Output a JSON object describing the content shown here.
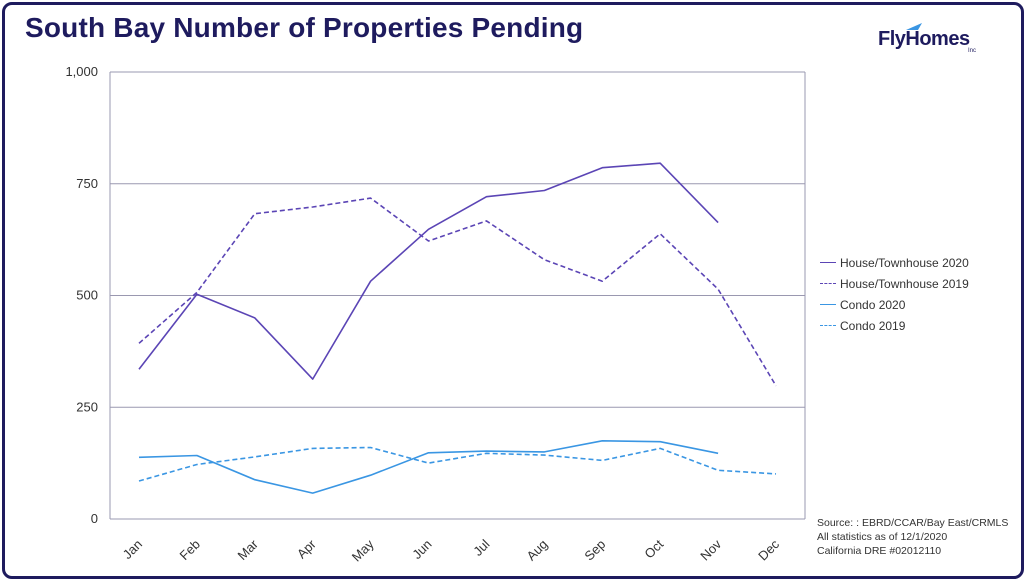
{
  "header": {
    "title": "South Bay Number of Properties Pending",
    "logo_text": "FlyHomes",
    "logo_sub": "Inc"
  },
  "colors": {
    "house": "#5b45b5",
    "condo": "#3a96e3",
    "grid": "#9a98b0",
    "frame": "#1e1b5e"
  },
  "source_lines": [
    "Source: : EBRD/CCAR/Bay East/CRMLS",
    "All statistics as of 12/1/2020",
    "California DRE #02012110"
  ],
  "chart_data": {
    "type": "line",
    "title": "South Bay Number of Properties Pending",
    "categories": [
      "Jan",
      "Feb",
      "Mar",
      "Apr",
      "May",
      "Jun",
      "Jul",
      "Aug",
      "Sep",
      "Oct",
      "Nov",
      "Dec"
    ],
    "ylim": [
      0,
      1000
    ],
    "yticks": [
      0,
      250,
      500,
      750,
      1000
    ],
    "ytick_labels": [
      "0",
      "250",
      "500",
      "750",
      "1,000"
    ],
    "grid": true,
    "legend_position": "right",
    "series": [
      {
        "name": "House/Townhouse 2020",
        "style": "solid",
        "color_key": "house",
        "values": [
          335,
          503,
          450,
          313,
          532,
          648,
          721,
          735,
          786,
          796,
          663,
          null
        ]
      },
      {
        "name": "House/Townhouse 2019",
        "style": "dashed",
        "color_key": "house",
        "values": [
          393,
          507,
          683,
          698,
          718,
          622,
          667,
          580,
          532,
          638,
          514,
          298
        ]
      },
      {
        "name": "Condo 2020",
        "style": "solid",
        "color_key": "condo",
        "values": [
          138,
          142,
          88,
          58,
          98,
          148,
          152,
          150,
          175,
          173,
          147,
          null
        ]
      },
      {
        "name": "Condo 2019",
        "style": "dashed",
        "color_key": "condo",
        "values": [
          85,
          122,
          139,
          158,
          160,
          125,
          147,
          143,
          131,
          158,
          109,
          101
        ]
      }
    ]
  }
}
